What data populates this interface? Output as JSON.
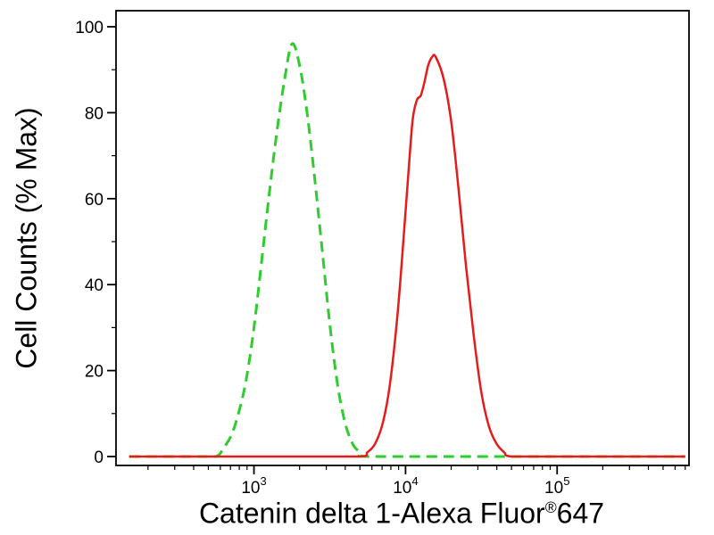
{
  "figure": {
    "background_color": "#ffffff",
    "frame_color": "#000000"
  },
  "chart_data": {
    "type": "line",
    "subtype": "flow-cytometry-histogram-overlay",
    "title": "",
    "xlabel": "Catenin delta 1-Alexa Fluor®647",
    "xlabel_parts": {
      "main": "Catenin delta 1-Alexa Fluor",
      "sup": "®",
      "suffix": "647"
    },
    "ylabel": "Cell Counts (% Max)",
    "x_scale": "log10",
    "x_log_range": [
      2.09,
      5.87
    ],
    "x_major_tick_exponents": [
      3,
      4,
      5
    ],
    "ylim": [
      0,
      100
    ],
    "y_ticks": [
      0,
      20,
      40,
      60,
      80,
      100
    ],
    "y_minor_ticks": [
      10,
      30,
      50,
      70,
      90
    ],
    "grid": false,
    "legend": null,
    "series": [
      {
        "name": "green-dashed",
        "description": "green dashed histogram, peak ~96% Max at ~1.8e3",
        "color": "#2ecc2e",
        "style": "dashed",
        "stroke_width": 3,
        "points": [
          [
            150,
            0
          ],
          [
            400,
            0
          ],
          [
            560,
            0
          ],
          [
            630,
            2
          ],
          [
            710,
            5
          ],
          [
            790,
            10
          ],
          [
            890,
            18
          ],
          [
            1000,
            30
          ],
          [
            1120,
            45
          ],
          [
            1260,
            61
          ],
          [
            1410,
            75
          ],
          [
            1580,
            87
          ],
          [
            1780,
            96
          ],
          [
            2000,
            91
          ],
          [
            2240,
            80
          ],
          [
            2510,
            65
          ],
          [
            2820,
            48
          ],
          [
            3160,
            31
          ],
          [
            3550,
            17
          ],
          [
            3980,
            8
          ],
          [
            4470,
            3
          ],
          [
            5010,
            1
          ],
          [
            5620,
            0
          ],
          [
            20000,
            0
          ],
          [
            100000,
            0
          ],
          [
            700000,
            0
          ]
        ]
      },
      {
        "name": "red-solid",
        "description": "red solid histogram, peak ~93% Max at ~1.5e4 with shoulder ~83% at ~1.2e4",
        "color": "#e51c1c",
        "style": "solid",
        "stroke_width": 2.5,
        "points": [
          [
            150,
            0
          ],
          [
            2000,
            0
          ],
          [
            5000,
            0
          ],
          [
            5600,
            1
          ],
          [
            6300,
            3
          ],
          [
            7100,
            8
          ],
          [
            7900,
            17
          ],
          [
            8900,
            34
          ],
          [
            10000,
            57
          ],
          [
            10700,
            71
          ],
          [
            11200,
            79
          ],
          [
            11900,
            83
          ],
          [
            12600,
            84
          ],
          [
            13300,
            87
          ],
          [
            14100,
            91
          ],
          [
            15000,
            93
          ],
          [
            15800,
            93
          ],
          [
            17800,
            88
          ],
          [
            20000,
            78
          ],
          [
            22400,
            62
          ],
          [
            25100,
            44
          ],
          [
            28200,
            28
          ],
          [
            31600,
            15
          ],
          [
            35500,
            7
          ],
          [
            39800,
            3
          ],
          [
            44700,
            1
          ],
          [
            50100,
            0
          ],
          [
            100000,
            0
          ],
          [
            700000,
            0
          ]
        ]
      }
    ]
  }
}
